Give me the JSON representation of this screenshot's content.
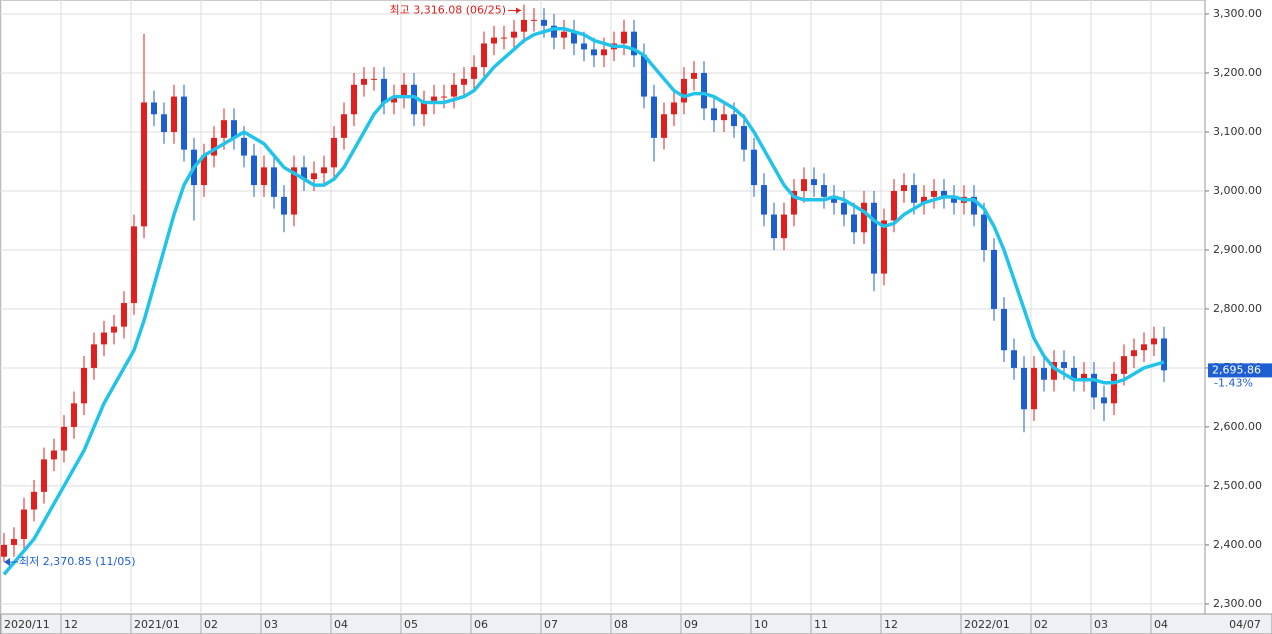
{
  "chart_data": {
    "type": "candlestick",
    "categories": [
      "2020/11",
      null,
      null,
      null,
      null,
      null,
      "12",
      null,
      null,
      null,
      null,
      null,
      null,
      "2021/01",
      null,
      null,
      null,
      null,
      null,
      null,
      "02",
      null,
      null,
      null,
      null,
      null,
      "03",
      null,
      null,
      null,
      null,
      null,
      null,
      "04",
      null,
      null,
      null,
      null,
      null,
      null,
      "05",
      null,
      null,
      null,
      null,
      null,
      null,
      "06",
      null,
      null,
      null,
      null,
      null,
      null,
      "07",
      null,
      null,
      null,
      null,
      null,
      null,
      "08",
      null,
      null,
      null,
      null,
      null,
      null,
      "09",
      null,
      null,
      null,
      null,
      null,
      null,
      "10",
      null,
      null,
      null,
      null,
      null,
      "11",
      null,
      null,
      null,
      null,
      null,
      null,
      "12",
      null,
      null,
      null,
      null,
      null,
      null,
      null,
      "2022/01",
      null,
      null,
      null,
      null,
      null,
      null,
      "02",
      null,
      null,
      null,
      null,
      null,
      "03",
      null,
      null,
      null,
      null,
      null,
      "04",
      "04/07"
    ],
    "open": [
      2380,
      2400,
      2410,
      2460,
      2490,
      2545,
      2560,
      2600,
      2640,
      2700,
      2740,
      2760,
      2770,
      2810,
      2940,
      3150,
      3130,
      3100,
      3160,
      3070,
      3010,
      3060,
      3090,
      3120,
      3090,
      3060,
      3010,
      3040,
      2990,
      2960,
      3040,
      3020,
      3030,
      3040,
      3090,
      3130,
      3180,
      3190,
      3190,
      3150,
      3160,
      3180,
      3130,
      3150,
      3160,
      3160,
      3180,
      3190,
      3210,
      3250,
      3260,
      3260,
      3270,
      3290,
      3290,
      3280,
      3260,
      3270,
      3250,
      3240,
      3230,
      3240,
      3250,
      3270,
      3230,
      3160,
      3090,
      3130,
      3150,
      3190,
      3200,
      3140,
      3120,
      3130,
      3110,
      3070,
      3010,
      2960,
      2920,
      2960,
      3000,
      3020,
      3010,
      2990,
      2980,
      2960,
      2930,
      2980,
      2860,
      2950,
      3000,
      3010,
      2980,
      2990,
      3000,
      2990,
      2980,
      2990,
      2960,
      2900,
      2800,
      2730,
      2700,
      2630,
      2700,
      2680,
      2710,
      2700,
      2680,
      2690,
      2650,
      2640,
      2690,
      2720,
      2730,
      2740,
      2750
    ],
    "high": [
      2420,
      2430,
      2480,
      2510,
      2565,
      2580,
      2620,
      2660,
      2720,
      2760,
      2780,
      2790,
      2830,
      2960,
      3266,
      3170,
      3150,
      3180,
      3180,
      3090,
      3080,
      3110,
      3140,
      3140,
      3110,
      3080,
      3060,
      3060,
      3010,
      3060,
      3060,
      3050,
      3060,
      3110,
      3150,
      3200,
      3210,
      3210,
      3210,
      3180,
      3200,
      3200,
      3170,
      3180,
      3180,
      3200,
      3210,
      3230,
      3270,
      3280,
      3280,
      3290,
      3316,
      3310,
      3310,
      3300,
      3290,
      3290,
      3270,
      3260,
      3260,
      3270,
      3290,
      3290,
      3250,
      3180,
      3150,
      3170,
      3210,
      3220,
      3220,
      3160,
      3150,
      3150,
      3130,
      3090,
      3030,
      2980,
      2980,
      3020,
      3040,
      3040,
      3030,
      3010,
      3000,
      2980,
      3000,
      3000,
      2970,
      3020,
      3030,
      3030,
      3010,
      3020,
      3020,
      3010,
      3010,
      3010,
      2980,
      2920,
      2820,
      2750,
      2720,
      2720,
      2720,
      2730,
      2730,
      2720,
      2710,
      2710,
      2670,
      2710,
      2740,
      2750,
      2760,
      2770,
      2770
    ],
    "low": [
      2371,
      2380,
      2390,
      2440,
      2470,
      2525,
      2540,
      2580,
      2620,
      2680,
      2720,
      2740,
      2750,
      2790,
      2920,
      3110,
      3080,
      3080,
      3050,
      2950,
      2990,
      3040,
      3070,
      3070,
      3040,
      2990,
      2990,
      2970,
      2930,
      2940,
      3000,
      3000,
      3010,
      3020,
      3070,
      3110,
      3160,
      3170,
      3130,
      3130,
      3140,
      3110,
      3110,
      3130,
      3140,
      3140,
      3160,
      3170,
      3190,
      3230,
      3240,
      3240,
      3250,
      3270,
      3260,
      3240,
      3240,
      3230,
      3220,
      3210,
      3210,
      3220,
      3230,
      3210,
      3140,
      3050,
      3070,
      3110,
      3130,
      3170,
      3120,
      3100,
      3100,
      3090,
      3050,
      2990,
      2940,
      2900,
      2900,
      2940,
      2980,
      2990,
      2970,
      2960,
      2940,
      2910,
      2910,
      2830,
      2840,
      2930,
      2980,
      2960,
      2960,
      2970,
      2970,
      2960,
      2960,
      2940,
      2880,
      2780,
      2710,
      2680,
      2591,
      2610,
      2660,
      2660,
      2680,
      2660,
      2660,
      2630,
      2610,
      2620,
      2670,
      2700,
      2710,
      2720,
      2676
    ],
    "close": [
      2400,
      2410,
      2460,
      2490,
      2545,
      2560,
      2600,
      2640,
      2700,
      2740,
      2760,
      2770,
      2810,
      2940,
      3150,
      3130,
      3100,
      3160,
      3070,
      3010,
      3060,
      3090,
      3120,
      3090,
      3060,
      3010,
      3040,
      2990,
      2960,
      3040,
      3020,
      3030,
      3040,
      3090,
      3130,
      3180,
      3190,
      3190,
      3150,
      3160,
      3180,
      3130,
      3150,
      3160,
      3160,
      3180,
      3190,
      3210,
      3250,
      3260,
      3260,
      3270,
      3290,
      3290,
      3280,
      3260,
      3270,
      3250,
      3240,
      3230,
      3240,
      3250,
      3270,
      3230,
      3160,
      3090,
      3130,
      3150,
      3190,
      3200,
      3140,
      3120,
      3130,
      3110,
      3070,
      3010,
      2960,
      2920,
      2960,
      3000,
      3020,
      3010,
      2990,
      2980,
      2960,
      2930,
      2980,
      2860,
      2950,
      3000,
      3010,
      2980,
      2990,
      3000,
      2990,
      2980,
      2990,
      2960,
      2900,
      2800,
      2730,
      2700,
      2630,
      2700,
      2680,
      2710,
      2700,
      2680,
      2690,
      2650,
      2640,
      2690,
      2720,
      2730,
      2740,
      2750,
      2696
    ],
    "up_color": "#e0201e",
    "down_color": "#1d5fd0",
    "ma": {
      "color": "#22c3ea",
      "values": [
        2350,
        2370,
        2390,
        2410,
        2440,
        2470,
        2500,
        2530,
        2560,
        2600,
        2640,
        2670,
        2700,
        2730,
        2780,
        2840,
        2900,
        2960,
        3010,
        3040,
        3060,
        3070,
        3080,
        3090,
        3100,
        3090,
        3080,
        3060,
        3040,
        3030,
        3020,
        3010,
        3010,
        3020,
        3040,
        3070,
        3100,
        3130,
        3150,
        3160,
        3160,
        3160,
        3150,
        3150,
        3150,
        3155,
        3160,
        3170,
        3190,
        3210,
        3225,
        3240,
        3255,
        3265,
        3270,
        3275,
        3275,
        3270,
        3265,
        3255,
        3250,
        3245,
        3245,
        3240,
        3230,
        3210,
        3190,
        3170,
        3160,
        3165,
        3165,
        3160,
        3150,
        3140,
        3125,
        3100,
        3070,
        3040,
        3010,
        2990,
        2985,
        2985,
        2985,
        2990,
        2985,
        2975,
        2965,
        2950,
        2940,
        2945,
        2960,
        2970,
        2980,
        2985,
        2990,
        2990,
        2985,
        2985,
        2970,
        2940,
        2900,
        2850,
        2800,
        2750,
        2720,
        2700,
        2690,
        2680,
        2680,
        2680,
        2675,
        2675,
        2680,
        2690,
        2700,
        2705,
        2710
      ]
    },
    "ylim": [
      2286.3,
      3323.7
    ],
    "yticks": [
      {
        "value": 2300,
        "label": "2,300.00"
      },
      {
        "value": 2400,
        "label": "2,400.00"
      },
      {
        "value": 2500,
        "label": "2,500.00"
      },
      {
        "value": 2600,
        "label": "2,600.00"
      },
      {
        "value": 2700,
        "label": "2,700.00"
      },
      {
        "value": 2800,
        "label": "2,800.00"
      },
      {
        "value": 2900,
        "label": "2,900.00"
      },
      {
        "value": 3000,
        "label": "3,000.00"
      },
      {
        "value": 3100,
        "label": "3,100.00"
      },
      {
        "value": 3200,
        "label": "3,200.00"
      },
      {
        "value": 3300,
        "label": "3,300.00"
      }
    ],
    "grid": true,
    "high_note": "최고 3,316.08 (06/25)",
    "low_note": "최저 2,370.85 (11/05)",
    "last_price": {
      "value": 2695.86,
      "label": "2,695.86"
    },
    "change": {
      "value": -1.43,
      "label": "-1.43%"
    }
  }
}
